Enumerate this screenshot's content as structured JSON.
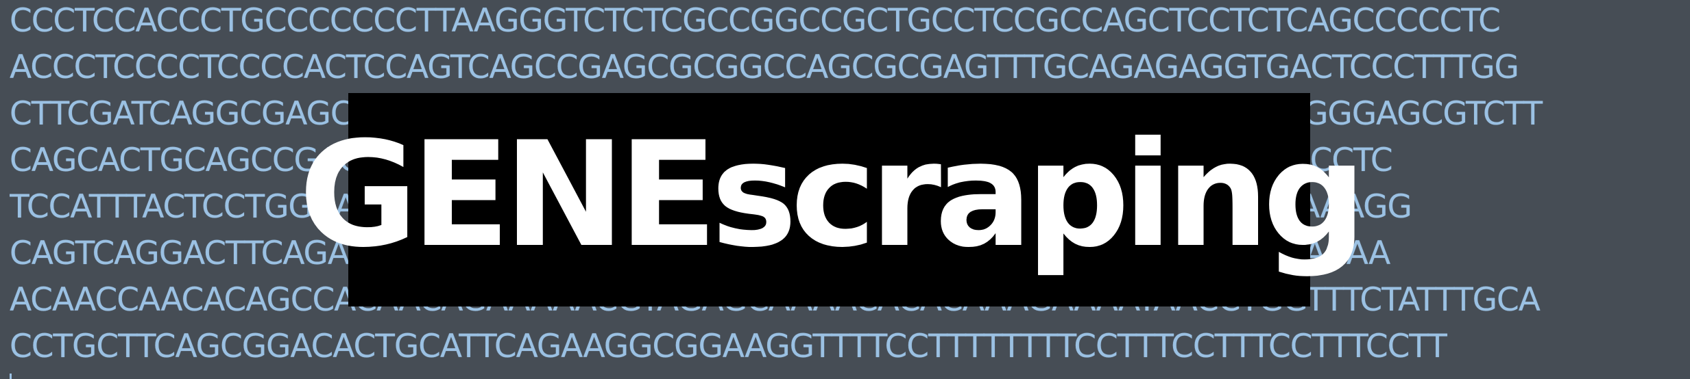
{
  "colors": {
    "background": "#464d55",
    "sequence_text": "#9bc1e3",
    "banner_background": "#000000",
    "banner_text": "#ffffff"
  },
  "sequence_lines": [
    "CCCTCCACCCTGCCCCCCCTTAAGGGTCTCTCGCCGGCCGCTGCCTCCGCCAGCTCCTCTCAGCCCCCTC",
    "ACCCTCCCCTCCCCACTCCAGTCAGCCGAGCGCGGCCAGCGCGAGTTTGCAGAGAGGTGACTCCCTTTGG",
    "CTTCGATCAGGCGAGCCCGAGAGCCCAAGCGGCGCGGCGGAGCTCGCGGGGCGAACCGGGGAGCGTCTT",
    "CAGCACTGCAGCCGAGCCGCCGCCCGCAGCCGCTCCGCTCCCTCTTCCTTCCTCTCACTCCCCTC",
    "TCCATTTACTCCTGGAAGAAGTTGAAAGAAAGATTTGCAACTCAGCCCAGTCAGACGATGAAAAGG",
    "CAGTCAGGACTTCAGAAAGCAAAAGAAAAACAAAACAAAAGAAAAAAAAAAAGGAAAAAACAA",
    "ACAACCAACACAGCCACAACAGAAAAACGTAGAGCAAAACACACAAAGAAAATAACCTGGTTTCTATTTGCA",
    "CCTGCTTCAGCGGACACTGCATTCAGAAGGCGGAAGGTTTTCCTTTTTTTTCCTTTCCTTTCCTTTCCTT"
  ],
  "banner": {
    "title": "GENEscraping"
  }
}
